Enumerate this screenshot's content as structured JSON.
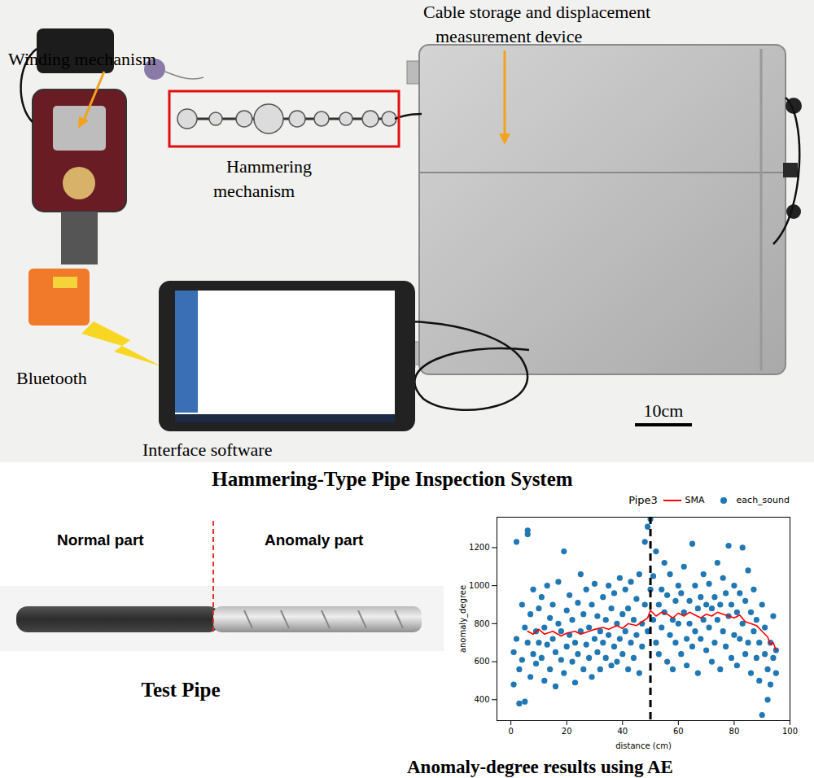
{
  "header": {
    "title": "Hammering-Type Pipe Inspection System"
  },
  "labels": {
    "winding": "Winding mechanism",
    "cable": [
      "Cable storage and displacement",
      "measurement device"
    ],
    "hammering": [
      "Hammering",
      "mechanism"
    ],
    "bluetooth": "Bluetooth",
    "interface": "Interface software",
    "scale": "10cm"
  },
  "test_pipe": {
    "title": "Test Pipe",
    "normal": "Normal part",
    "anomaly": "Anomaly part"
  },
  "results_title": "Anomaly-degree results using AE",
  "chart_data": {
    "type": "scatter",
    "title": "Pipe3",
    "x_label": "distance (cm)",
    "y_label": "anomaly_degree",
    "xlim": [
      -5,
      100
    ],
    "xticks": [
      0,
      20,
      40,
      60,
      80,
      100
    ],
    "ylim": [
      290,
      1360
    ],
    "yticks": [
      400,
      600,
      800,
      1000,
      1200
    ],
    "grid": false,
    "legend": "upper right",
    "annotations": [
      {
        "type": "vline",
        "x": 50,
        "color": "black",
        "line_style": "dashed"
      }
    ],
    "series": [
      {
        "name": "SMA",
        "type": "line",
        "color": "red",
        "x": [
          6,
          8,
          10,
          12,
          15,
          18,
          20,
          23,
          25,
          28,
          30,
          33,
          35,
          38,
          40,
          42,
          45,
          47,
          49,
          50,
          52,
          54,
          56,
          58,
          60,
          62,
          64,
          66,
          68,
          70,
          72,
          74,
          76,
          78,
          80,
          82,
          84,
          86,
          88,
          90,
          92,
          93,
          94,
          95
        ],
        "values": [
          760,
          745,
          770,
          745,
          760,
          735,
          750,
          760,
          745,
          760,
          770,
          780,
          770,
          790,
          775,
          800,
          790,
          810,
          830,
          870,
          840,
          860,
          850,
          830,
          855,
          840,
          860,
          845,
          830,
          850,
          840,
          860,
          850,
          840,
          830,
          845,
          810,
          800,
          790,
          760,
          730,
          690,
          700,
          660
        ]
      },
      {
        "name": "each_sound",
        "type": "scatter",
        "color": "#1f77b4",
        "marker": "circle",
        "x": [
          1,
          1,
          2,
          2,
          3,
          3,
          4,
          4,
          5,
          5,
          6,
          6,
          6,
          7,
          7,
          8,
          8,
          9,
          9,
          10,
          10,
          11,
          11,
          12,
          12,
          13,
          13,
          14,
          14,
          15,
          15,
          16,
          16,
          17,
          17,
          18,
          18,
          19,
          19,
          20,
          20,
          21,
          21,
          22,
          22,
          23,
          23,
          24,
          24,
          25,
          25,
          26,
          26,
          27,
          27,
          28,
          28,
          29,
          29,
          30,
          30,
          31,
          31,
          32,
          32,
          33,
          33,
          34,
          34,
          35,
          35,
          36,
          36,
          37,
          37,
          38,
          38,
          39,
          39,
          40,
          40,
          41,
          41,
          42,
          42,
          43,
          43,
          44,
          44,
          45,
          45,
          46,
          46,
          47,
          47,
          48,
          48,
          49,
          49,
          50,
          50,
          51,
          51,
          52,
          52,
          53,
          53,
          54,
          54,
          55,
          55,
          56,
          56,
          57,
          57,
          58,
          58,
          59,
          59,
          60,
          60,
          61,
          61,
          62,
          62,
          63,
          63,
          64,
          64,
          65,
          65,
          66,
          66,
          67,
          67,
          68,
          68,
          69,
          69,
          70,
          70,
          71,
          71,
          72,
          72,
          73,
          73,
          74,
          74,
          75,
          75,
          76,
          76,
          77,
          77,
          78,
          78,
          79,
          79,
          80,
          80,
          81,
          81,
          82,
          82,
          83,
          83,
          84,
          84,
          85,
          85,
          86,
          86,
          87,
          87,
          88,
          88,
          89,
          89,
          90,
          90,
          91,
          91,
          92,
          92,
          93,
          93,
          94,
          94,
          95,
          95
        ],
        "values": [
          650,
          480,
          1230,
          720,
          380,
          560,
          900,
          610,
          390,
          780,
          1270,
          1290,
          700,
          850,
          520,
          640,
          980,
          760,
          590,
          880,
          700,
          620,
          940,
          780,
          500,
          1000,
          690,
          830,
          560,
          720,
          900,
          650,
          470,
          800,
          1020,
          610,
          760,
          1180,
          540,
          870,
          680,
          740,
          950,
          600,
          820,
          490,
          700,
          910,
          640,
          1060,
          760,
          560,
          850,
          690,
          980,
          620,
          780,
          520,
          900,
          720,
          1010,
          650,
          840,
          760,
          560,
          940,
          700,
          820,
          620,
          1000,
          740,
          580,
          880,
          680,
          960,
          800,
          600,
          720,
          1040,
          850,
          640,
          760,
          980,
          560,
          880,
          700,
          1020,
          820,
          620,
          930,
          740,
          540,
          1060,
          800,
          680,
          1230,
          900,
          1310,
          760,
          1350,
          980,
          1050,
          820,
          700,
          1180,
          900,
          640,
          980,
          780,
          1120,
          860,
          600,
          950,
          740,
          1060,
          820,
          560,
          920,
          700,
          1000,
          800,
          640,
          960,
          860,
          1100,
          720,
          580,
          920,
          800,
          1220,
          680,
          1000,
          760,
          880,
          540,
          940,
          720,
          1060,
          820,
          660,
          900,
          780,
          1010,
          600,
          880,
          940,
          700,
          1120,
          820,
          560,
          900,
          760,
          1040,
          680,
          960,
          1210,
          840,
          620,
          900,
          740,
          1000,
          860,
          580,
          960,
          720,
          1200,
          800,
          640,
          920,
          1080,
          700,
          540,
          860,
          760,
          980,
          620,
          820,
          700,
          500,
          900,
          320,
          640,
          780,
          400,
          560,
          700,
          480,
          620,
          840,
          540,
          660
        ]
      }
    ]
  }
}
